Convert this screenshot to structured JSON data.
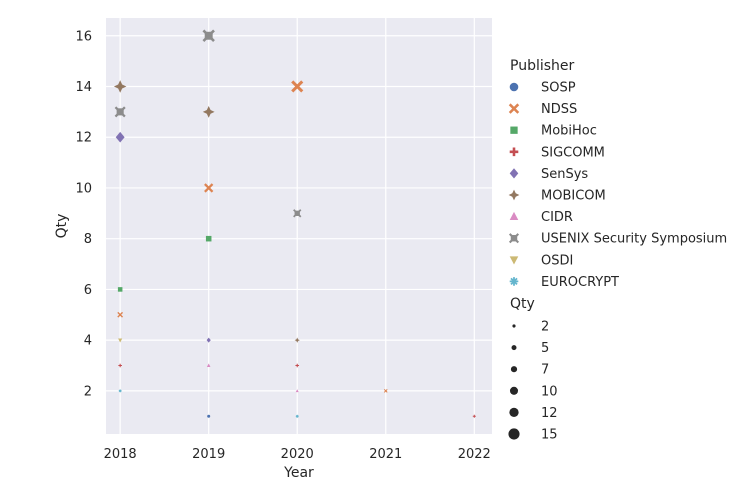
{
  "chart_data": {
    "type": "scatter",
    "xlabel": "Year",
    "ylabel": "Qty",
    "x_ticks": [
      "2018",
      "2019",
      "2020",
      "2021",
      "2022"
    ],
    "y_ticks": [
      2,
      4,
      6,
      8,
      10,
      12,
      14,
      16
    ],
    "xlim": [
      2017.84,
      2022.2
    ],
    "ylim": [
      0.3,
      16.7
    ],
    "grid": true,
    "background": "#EAEAF2",
    "legend_placement": "right",
    "hue_legend": {
      "title": "Publisher",
      "entries": [
        {
          "name": "SOSP",
          "color": "#4C72B0",
          "marker": "circle"
        },
        {
          "name": "NDSS",
          "color": "#DD8452",
          "marker": "x"
        },
        {
          "name": "MobiHoc",
          "color": "#55A868",
          "marker": "square"
        },
        {
          "name": "SIGCOMM",
          "color": "#C44E52",
          "marker": "plus"
        },
        {
          "name": "SenSys",
          "color": "#8172B3",
          "marker": "diamond"
        },
        {
          "name": "MOBICOM",
          "color": "#937860",
          "marker": "star4"
        },
        {
          "name": "CIDR",
          "color": "#DA8BC3",
          "marker": "triangle-up"
        },
        {
          "name": "USENIX Security Symposium",
          "color": "#8C8C8C",
          "marker": "square-x"
        },
        {
          "name": "OSDI",
          "color": "#CCB974",
          "marker": "triangle-down"
        },
        {
          "name": "EUROCRYPT",
          "color": "#64B5CD",
          "marker": "asterisk"
        }
      ]
    },
    "size_legend": {
      "title": "Qty",
      "entries": [
        "2",
        "5",
        "7",
        "10",
        "12",
        "15"
      ],
      "values": [
        2,
        5,
        7,
        10,
        12,
        15
      ]
    },
    "points": [
      {
        "series": "MOBICOM",
        "x": 2018,
        "y": 14
      },
      {
        "series": "USENIX Security Symposium",
        "x": 2018,
        "y": 13
      },
      {
        "series": "SenSys",
        "x": 2018,
        "y": 12
      },
      {
        "series": "MobiHoc",
        "x": 2018,
        "y": 6
      },
      {
        "series": "NDSS",
        "x": 2018,
        "y": 5
      },
      {
        "series": "OSDI",
        "x": 2018,
        "y": 4
      },
      {
        "series": "SIGCOMM",
        "x": 2018,
        "y": 3
      },
      {
        "series": "EUROCRYPT",
        "x": 2018,
        "y": 2
      },
      {
        "series": "USENIX Security Symposium",
        "x": 2019,
        "y": 16
      },
      {
        "series": "MOBICOM",
        "x": 2019,
        "y": 13
      },
      {
        "series": "NDSS",
        "x": 2019,
        "y": 10
      },
      {
        "series": "MobiHoc",
        "x": 2019,
        "y": 8
      },
      {
        "series": "SenSys",
        "x": 2019,
        "y": 4
      },
      {
        "series": "CIDR",
        "x": 2019,
        "y": 3
      },
      {
        "series": "SOSP",
        "x": 2019,
        "y": 1
      },
      {
        "series": "NDSS",
        "x": 2020,
        "y": 14
      },
      {
        "series": "USENIX Security Symposium",
        "x": 2020,
        "y": 9
      },
      {
        "series": "MOBICOM",
        "x": 2020,
        "y": 4
      },
      {
        "series": "SIGCOMM",
        "x": 2020,
        "y": 3
      },
      {
        "series": "CIDR",
        "x": 2020,
        "y": 2
      },
      {
        "series": "EUROCRYPT",
        "x": 2020,
        "y": 1
      },
      {
        "series": "NDSS",
        "x": 2021,
        "y": 2
      },
      {
        "series": "SIGCOMM",
        "x": 2022,
        "y": 1
      }
    ]
  }
}
